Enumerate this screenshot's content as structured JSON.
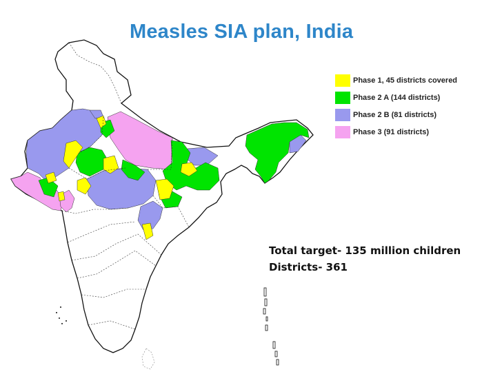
{
  "title": "Measles SIA plan, India",
  "legend": [
    {
      "label": "Phase 1, 45 districts covered",
      "color": "#FFFF00"
    },
    {
      "label": "Phase 2 A  (144 districts)",
      "color": "#00E400"
    },
    {
      "label": "Phase 2 B (81 districts)",
      "color": "#9999EE"
    },
    {
      "label": "Phase 3 (91 districts)",
      "color": "#F5A3F0"
    }
  ],
  "summary": {
    "target": "Total target- 135 million children",
    "districts": "Districts- 361"
  },
  "colors": {
    "title": "#2E86C9",
    "outline": "#111111",
    "phase1": "#FFFF00",
    "phase2a": "#00E400",
    "phase2b": "#9999EE",
    "phase3": "#F5A3F0"
  }
}
